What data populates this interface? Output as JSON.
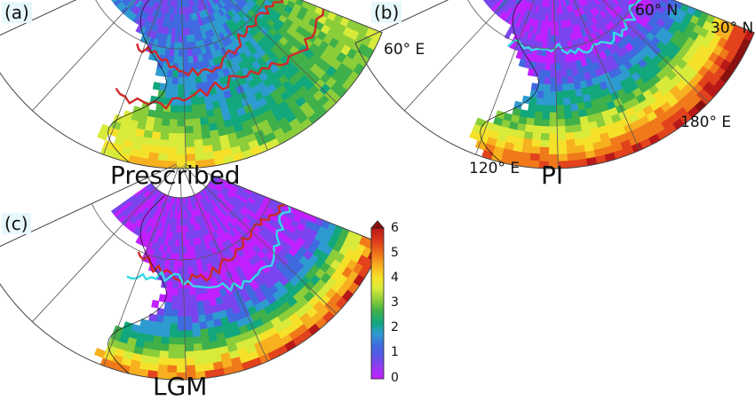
{
  "panels": [
    {
      "id": "a",
      "label": "(a)",
      "title": "Prescribed",
      "scheme": "a"
    },
    {
      "id": "b",
      "label": "(b)",
      "title": "PI",
      "scheme": "b"
    },
    {
      "id": "c",
      "label": "(c)",
      "title": "LGM",
      "scheme": "c"
    }
  ],
  "coordinates": {
    "lat_60": "60° N",
    "lat_30": "30° N",
    "lon_60": "60° E",
    "lon_120": "120° E",
    "lon_180": "180° E"
  },
  "colorbar": {
    "ticks": [
      "6",
      "5",
      "4",
      "3",
      "2",
      "1",
      "0"
    ],
    "min": 0,
    "max": 6,
    "extend": "max",
    "colors": [
      "#c020ff",
      "#7a45ee",
      "#3f6ae0",
      "#2e9bd0",
      "#12a77c",
      "#3fb04a",
      "#8ccd3a",
      "#d8ea3a",
      "#f6e12a",
      "#f7b01f",
      "#f07a1a",
      "#e2421c",
      "#b81818",
      "#8b1010"
    ]
  },
  "contour_colors": {
    "red": "#d02828",
    "cyan": "#38d8e6"
  }
}
